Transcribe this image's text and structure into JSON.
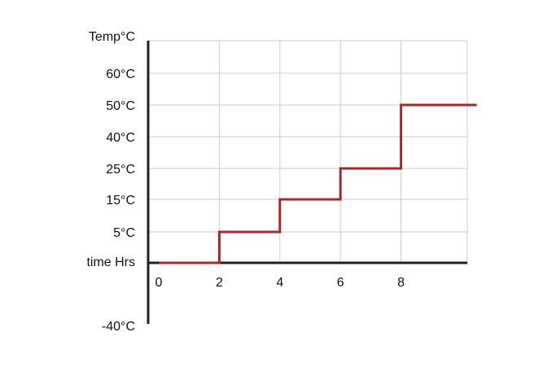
{
  "chart_data": {
    "type": "line",
    "title": "",
    "ylabel": "Temp°C",
    "xlabel": "time Hrs",
    "x_ticks": [
      0,
      2,
      4,
      6,
      8
    ],
    "y_ticks": [
      "60°C",
      "50°C",
      "40°C",
      "25°C",
      "15°C",
      "5°C"
    ],
    "y_bottom_label": "-40°C",
    "series": [
      {
        "step": true,
        "color": "#a52a2a",
        "x": [
          0,
          2,
          2,
          4,
          4,
          6,
          6,
          8,
          8,
          10.5
        ],
        "y": [
          "time Hrs",
          "time Hrs",
          "5°C",
          "5°C",
          "15°C",
          "15°C",
          "25°C",
          "25°C",
          "50°C",
          "50°C"
        ]
      }
    ],
    "grid": true,
    "colors": {
      "axis": "#222222",
      "grid": "#cccccc",
      "line": "#a52a2a"
    }
  }
}
